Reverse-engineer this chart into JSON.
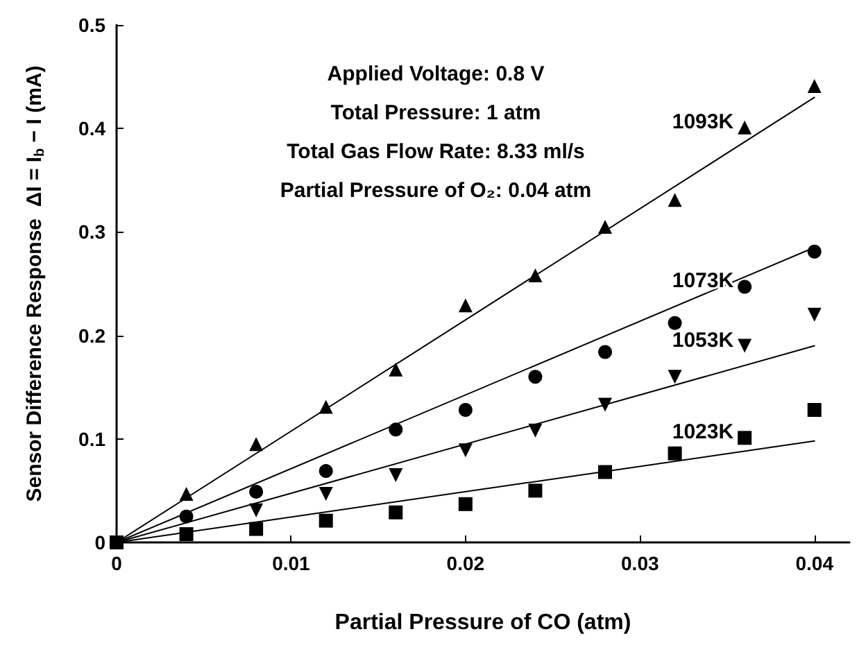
{
  "chart_data": {
    "type": "scatter",
    "xlabel": "Partial Pressure of CO (atm)",
    "ylabel": "Sensor Difference Response  ΔI = I$_{b}$ − I (mA)",
    "xlim": [
      0,
      0.042
    ],
    "ylim": [
      0,
      0.5
    ],
    "xticks": [
      0,
      0.01,
      0.02,
      0.03,
      0.04
    ],
    "yticks": [
      0,
      0.1,
      0.2,
      0.3,
      0.4,
      0.5
    ],
    "grid": false,
    "legend": false,
    "annotations": [
      "Applied Voltage: 0.8 V",
      "Total Pressure: 1 atm",
      "Total Gas Flow Rate: 8.33 ml/s",
      "Partial Pressure of O₂: 0.04 atm"
    ],
    "series": [
      {
        "name": "1093K",
        "marker": "triangle",
        "color": "#000000",
        "x": [
          0.004,
          0.008,
          0.012,
          0.016,
          0.02,
          0.024,
          0.028,
          0.032,
          0.036,
          0.04
        ],
        "values": [
          0.047,
          0.095,
          0.131,
          0.167,
          0.229,
          0.258,
          0.305,
          0.331,
          0.401,
          0.441
        ]
      },
      {
        "name": "1073K",
        "marker": "circle",
        "color": "#000000",
        "x": [
          0.004,
          0.008,
          0.012,
          0.016,
          0.02,
          0.024,
          0.028,
          0.032,
          0.036,
          0.04
        ],
        "values": [
          0.025,
          0.049,
          0.069,
          0.109,
          0.128,
          0.16,
          0.184,
          0.212,
          0.247,
          0.281
        ]
      },
      {
        "name": "1053K",
        "marker": "triangle-down",
        "color": "#000000",
        "x": [
          0.008,
          0.012,
          0.016,
          0.02,
          0.024,
          0.028,
          0.032,
          0.036,
          0.04
        ],
        "values": [
          0.031,
          0.047,
          0.065,
          0.089,
          0.108,
          0.133,
          0.16,
          0.19,
          0.22
        ]
      },
      {
        "name": "1023K",
        "marker": "square",
        "color": "#000000",
        "x": [
          0,
          0.004,
          0.008,
          0.012,
          0.016,
          0.02,
          0.024,
          0.028,
          0.032,
          0.036,
          0.04
        ],
        "values": [
          0,
          0.008,
          0.013,
          0.021,
          0.029,
          0.037,
          0.05,
          0.068,
          0.086,
          0.101,
          0.128
        ]
      },
      {
        "type": "line",
        "marker": "none",
        "line_style": "solid",
        "color": "#000000",
        "x": [
          0,
          0.04
        ],
        "values": [
          0,
          0.43
        ]
      },
      {
        "type": "line",
        "marker": "none",
        "line_style": "solid",
        "color": "#000000",
        "x": [
          0,
          0.04
        ],
        "values": [
          0,
          0.285
        ]
      },
      {
        "type": "line",
        "marker": "none",
        "line_style": "solid",
        "color": "#000000",
        "x": [
          0,
          0.04
        ],
        "values": [
          0,
          0.19
        ]
      },
      {
        "type": "line",
        "marker": "none",
        "line_style": "solid",
        "color": "#000000",
        "x": [
          0,
          0.04
        ],
        "values": [
          0,
          0.098
        ]
      }
    ]
  }
}
